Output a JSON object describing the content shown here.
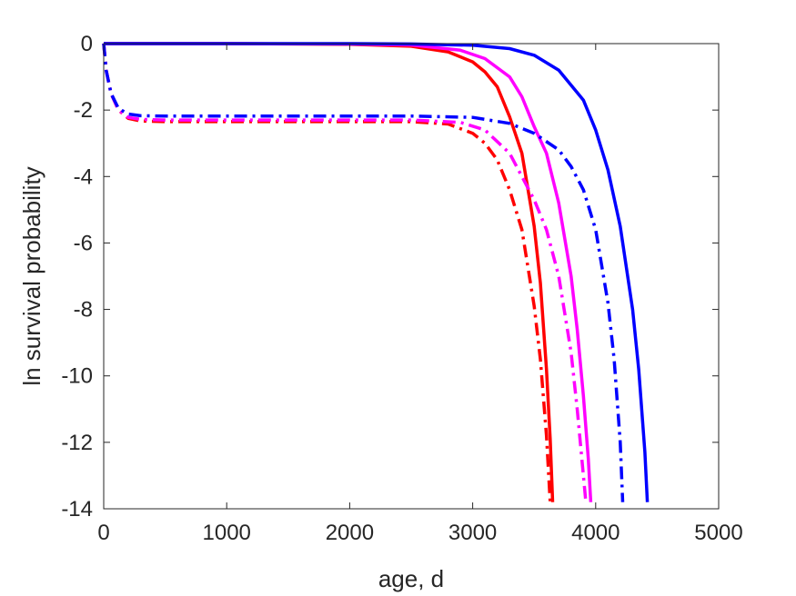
{
  "chart_data": {
    "type": "line",
    "title": "",
    "xlabel": "age, d",
    "ylabel": "ln survival probability",
    "xlim": [
      0,
      5000
    ],
    "ylim": [
      -14,
      0
    ],
    "xticks": [
      0,
      1000,
      2000,
      3000,
      4000,
      5000
    ],
    "yticks": [
      0,
      -2,
      -4,
      -6,
      -8,
      -10,
      -12,
      -14
    ],
    "xtick_labels": [
      "0",
      "1000",
      "2000",
      "3000",
      "4000",
      "5000"
    ],
    "ytick_labels": [
      "0",
      "-2",
      "-4",
      "-6",
      "-8",
      "-10",
      "-12",
      "-14"
    ],
    "grid": false,
    "legend": "none",
    "series": [
      {
        "color": "#ff0000",
        "style": "solid",
        "x": [
          0,
          1000,
          2000,
          2500,
          2800,
          3000,
          3100,
          3200,
          3300,
          3400,
          3500,
          3550,
          3600,
          3630,
          3650
        ],
        "y": [
          0,
          0,
          -0.02,
          -0.08,
          -0.25,
          -0.55,
          -0.85,
          -1.3,
          -2.2,
          -3.3,
          -5.5,
          -7.2,
          -9.8,
          -11.9,
          -13.8
        ]
      },
      {
        "color": "#ff00ff",
        "style": "solid",
        "x": [
          0,
          1000,
          2000,
          2500,
          2900,
          3100,
          3300,
          3400,
          3500,
          3600,
          3700,
          3800,
          3850,
          3900,
          3940,
          3960
        ],
        "y": [
          0,
          0,
          -0.01,
          -0.04,
          -0.2,
          -0.45,
          -1.0,
          -1.6,
          -2.5,
          -3.3,
          -4.8,
          -7.0,
          -8.6,
          -10.6,
          -12.5,
          -13.8
        ]
      },
      {
        "color": "#0000ff",
        "style": "solid",
        "x": [
          0,
          1000,
          2000,
          2500,
          3000,
          3300,
          3500,
          3700,
          3900,
          4000,
          4100,
          4200,
          4300,
          4350,
          4400,
          4420
        ],
        "y": [
          0,
          0,
          0,
          -0.01,
          -0.05,
          -0.15,
          -0.35,
          -0.8,
          -1.7,
          -2.6,
          -3.8,
          -5.5,
          -8.0,
          -9.8,
          -12.3,
          -13.8
        ]
      },
      {
        "color": "#ff0000",
        "style": "dashdot",
        "x": [
          0,
          20,
          60,
          120,
          200,
          300,
          500,
          1000,
          2000,
          2500,
          2800,
          3000,
          3100,
          3200,
          3300,
          3400,
          3500,
          3550,
          3600,
          3630
        ],
        "y": [
          0,
          -0.8,
          -1.5,
          -2.0,
          -2.25,
          -2.33,
          -2.35,
          -2.35,
          -2.35,
          -2.35,
          -2.42,
          -2.7,
          -3.0,
          -3.5,
          -4.4,
          -5.6,
          -7.9,
          -9.5,
          -11.8,
          -13.8
        ]
      },
      {
        "color": "#ff00ff",
        "style": "dashdot",
        "x": [
          0,
          20,
          60,
          120,
          200,
          300,
          500,
          1000,
          2000,
          2500,
          2900,
          3100,
          3300,
          3400,
          3500,
          3600,
          3700,
          3800,
          3850,
          3900,
          3920
        ],
        "y": [
          0,
          -0.8,
          -1.5,
          -2.0,
          -2.22,
          -2.28,
          -2.3,
          -2.3,
          -2.3,
          -2.3,
          -2.37,
          -2.6,
          -3.3,
          -4.0,
          -4.7,
          -5.6,
          -7.0,
          -9.3,
          -11.0,
          -13.0,
          -13.8
        ]
      },
      {
        "color": "#0000ff",
        "style": "dashdot",
        "x": [
          0,
          20,
          60,
          120,
          200,
          300,
          500,
          1000,
          2000,
          2500,
          3000,
          3300,
          3500,
          3700,
          3800,
          3900,
          4000,
          4100,
          4150,
          4200,
          4220
        ],
        "y": [
          0,
          -0.8,
          -1.5,
          -1.95,
          -2.12,
          -2.17,
          -2.18,
          -2.18,
          -2.18,
          -2.18,
          -2.22,
          -2.4,
          -2.7,
          -3.2,
          -3.7,
          -4.4,
          -5.6,
          -7.8,
          -9.5,
          -12.0,
          -13.8
        ]
      }
    ]
  }
}
